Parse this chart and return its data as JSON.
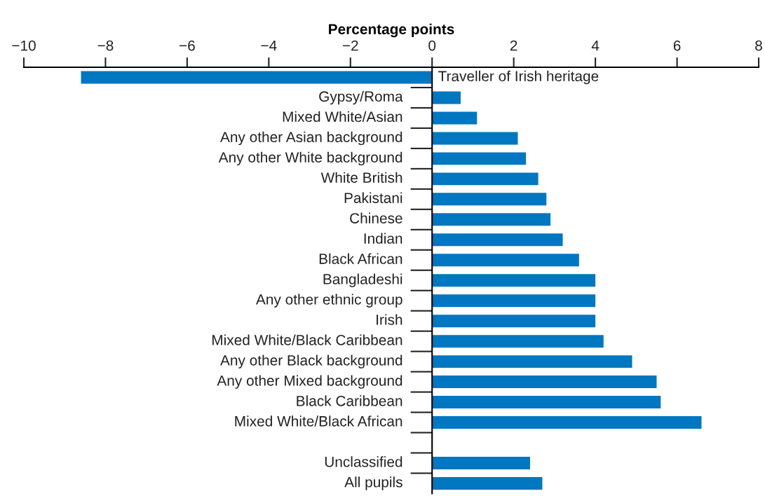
{
  "chart_data": {
    "type": "bar",
    "orientation": "horizontal",
    "xlabel": "Percentage points",
    "categories": [
      "Traveller of Irish heritage",
      "Gypsy/Roma",
      "Mixed White/Asian",
      "Any other Asian background",
      "Any other White background",
      "White British",
      "Pakistani",
      "Chinese",
      "Indian",
      "Black African",
      "Bangladeshi",
      "Any other ethnic group",
      "Irish",
      "Mixed White/Black Caribbean",
      "Any other Black background",
      "Any other Mixed background",
      "Black Caribbean",
      "Mixed White/Black African",
      null,
      "Unclassified",
      "All pupils"
    ],
    "values": [
      -8.6,
      0.7,
      1.1,
      2.1,
      2.3,
      2.6,
      2.8,
      2.9,
      3.2,
      3.6,
      4.0,
      4.0,
      4.0,
      4.2,
      4.9,
      5.5,
      5.6,
      6.6,
      null,
      2.4,
      2.7
    ],
    "color": "#0077c0",
    "xlim": [
      -10,
      8
    ],
    "xticks": [
      {
        "value": -10,
        "label": "−10"
      },
      {
        "value": -8,
        "label": "−8"
      },
      {
        "value": -6,
        "label": "−6"
      },
      {
        "value": -4,
        "label": "−4"
      },
      {
        "value": -2,
        "label": "−2"
      },
      0,
      2,
      4,
      6,
      8
    ],
    "grid": false,
    "legend": false
  }
}
